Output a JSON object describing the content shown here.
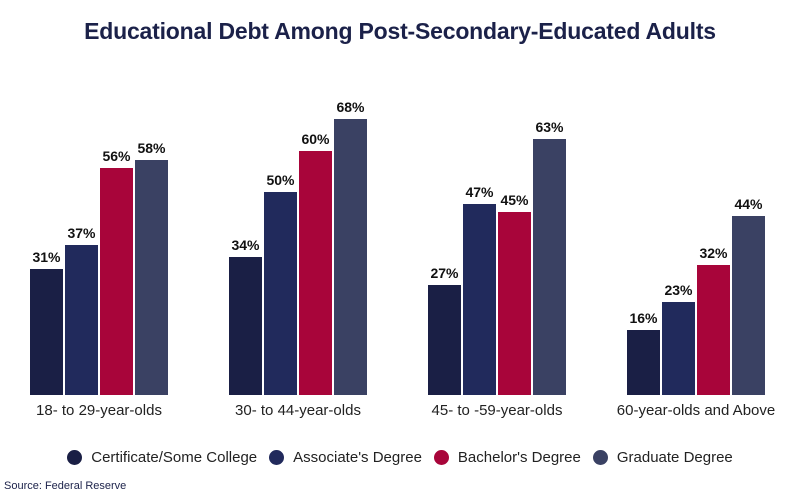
{
  "title": "Educational Debt Among Post-Secondary-Educated Adults",
  "source": "Source: Federal Reserve",
  "colors": {
    "certificate": "#1a1f45",
    "associate": "#212a5c",
    "bachelor": "#a8053a",
    "graduate": "#3a4163",
    "title": "#1b2149"
  },
  "legend": [
    {
      "label": "Certificate/Some College",
      "color": "#1a1f45"
    },
    {
      "label": "Associate's Degree",
      "color": "#212a5c"
    },
    {
      "label": "Bachelor's Degree",
      "color": "#a8053a"
    },
    {
      "label": "Graduate Degree",
      "color": "#3a4163"
    }
  ],
  "chart_data": {
    "type": "bar",
    "title": "Educational Debt Among Post-Secondary-Educated Adults",
    "xlabel": "",
    "ylabel": "",
    "categories": [
      "18- to 29-year-olds",
      "30- to 44-year-olds",
      "45- to -59-year-olds",
      "60-year-olds and Above"
    ],
    "series": [
      {
        "name": "Certificate/Some College",
        "values": [
          31,
          34,
          27,
          16
        ],
        "labels": [
          "31%",
          "34%",
          "27%",
          "16%"
        ]
      },
      {
        "name": "Associate's Degree",
        "values": [
          37,
          50,
          47,
          23
        ],
        "labels": [
          "37%",
          "50%",
          "47%",
          "23%"
        ]
      },
      {
        "name": "Bachelor's Degree",
        "values": [
          56,
          60,
          45,
          32
        ],
        "labels": [
          "56%",
          "60%",
          "45%",
          "32%"
        ]
      },
      {
        "name": "Graduate Degree",
        "values": [
          58,
          68,
          63,
          44
        ],
        "labels": [
          "58%",
          "68%",
          "63%",
          "44%"
        ]
      }
    ],
    "ylim": [
      0,
      70
    ],
    "grid": false,
    "legend_position": "bottom",
    "source": "Source: Federal Reserve"
  }
}
